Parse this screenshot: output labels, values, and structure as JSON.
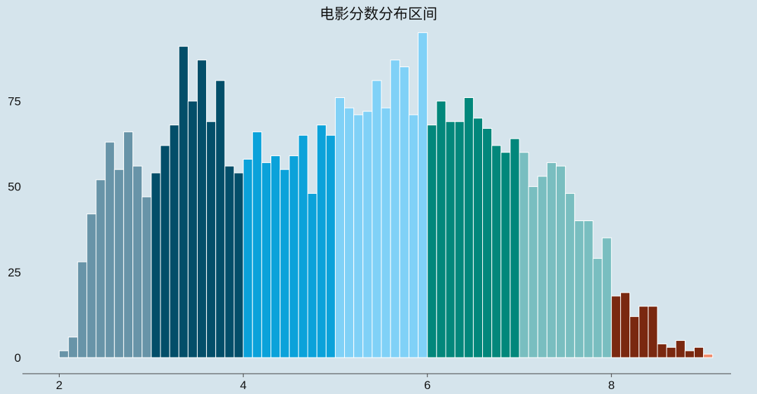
{
  "chart_data": {
    "type": "bar",
    "title": "电影分数分布区间",
    "xlabel": "",
    "ylabel": "",
    "x_ticks": [
      2,
      4,
      6,
      8
    ],
    "y_ticks": [
      0,
      25,
      50,
      75
    ],
    "xlim": [
      1.6,
      9.3
    ],
    "ylim": [
      0,
      98
    ],
    "grid": false,
    "bin_width": 0.1,
    "x": [
      2.0,
      2.1,
      2.2,
      2.3,
      2.4,
      2.5,
      2.6,
      2.7,
      2.8,
      2.9,
      3.0,
      3.1,
      3.2,
      3.3,
      3.4,
      3.5,
      3.6,
      3.7,
      3.8,
      3.9,
      4.0,
      4.1,
      4.2,
      4.3,
      4.4,
      4.5,
      4.6,
      4.7,
      4.8,
      4.9,
      5.0,
      5.1,
      5.2,
      5.3,
      5.4,
      5.5,
      5.6,
      5.7,
      5.8,
      5.9,
      6.0,
      6.1,
      6.2,
      6.3,
      6.4,
      6.5,
      6.6,
      6.7,
      6.8,
      6.9,
      7.0,
      7.1,
      7.2,
      7.3,
      7.4,
      7.5,
      7.6,
      7.7,
      7.8,
      7.9,
      8.0,
      8.1,
      8.2,
      8.3,
      8.4,
      8.5,
      8.6,
      8.7,
      8.8,
      8.9,
      9.0
    ],
    "values": [
      2,
      6,
      28,
      42,
      52,
      63,
      55,
      66,
      56,
      47,
      54,
      62,
      68,
      91,
      75,
      87,
      69,
      81,
      56,
      54,
      58,
      66,
      57,
      59,
      55,
      59,
      65,
      48,
      68,
      65,
      76,
      73,
      71,
      72,
      81,
      73,
      87,
      85,
      71,
      95,
      68,
      75,
      69,
      69,
      76,
      70,
      67,
      62,
      60,
      64,
      60,
      50,
      53,
      57,
      56,
      48,
      40,
      40,
      29,
      35,
      18,
      19,
      12,
      15,
      15,
      4,
      3,
      5,
      2,
      3,
      1
    ],
    "color_ranges": [
      {
        "from": 2,
        "to": 3,
        "color": "#6894a8"
      },
      {
        "from": 3,
        "to": 4,
        "color": "#034e69"
      },
      {
        "from": 4,
        "to": 5,
        "color": "#0ba2da"
      },
      {
        "from": 5,
        "to": 6,
        "color": "#80d1f7"
      },
      {
        "from": 6,
        "to": 7,
        "color": "#02877b"
      },
      {
        "from": 7,
        "to": 8,
        "color": "#79bec0"
      },
      {
        "from": 8,
        "to": 9,
        "color": "#7a2810"
      },
      {
        "from": 9,
        "to": 10,
        "color": "#f08a6a"
      }
    ],
    "bar_edge_color": "#ffffff",
    "axis_color": "#444444"
  }
}
